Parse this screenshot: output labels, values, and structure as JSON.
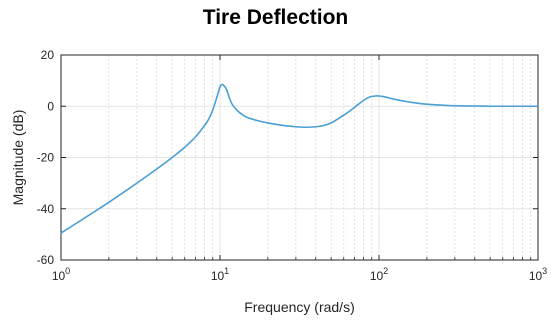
{
  "chart_data": {
    "type": "line",
    "title": "Tire Deflection",
    "xlabel": "Frequency  (rad/s)",
    "ylabel": "Magnitude (dB)",
    "x_scale": "log",
    "xlim": [
      1,
      1000
    ],
    "ylim": [
      -60,
      20
    ],
    "grid": true,
    "x_ticks": [
      {
        "value": 1,
        "base": "10",
        "exp": "0"
      },
      {
        "value": 10,
        "base": "10",
        "exp": "1"
      },
      {
        "value": 100,
        "base": "10",
        "exp": "2"
      },
      {
        "value": 1000,
        "base": "10",
        "exp": "3"
      }
    ],
    "y_ticks": [
      {
        "value": 20,
        "label": "20"
      },
      {
        "value": 0,
        "label": "0"
      },
      {
        "value": -20,
        "label": "-20"
      },
      {
        "value": -40,
        "label": "-40"
      },
      {
        "value": -60,
        "label": "-60"
      }
    ],
    "series": [
      {
        "color": "#4a9fd4",
        "x": [
          1,
          1.5,
          2,
          3,
          4,
          5,
          6,
          7,
          8,
          8.5,
          9,
          9.5,
          10,
          10.3,
          10.6,
          11,
          11.5,
          12,
          13,
          14,
          15,
          17,
          20,
          25,
          30,
          35,
          40,
          45,
          50,
          55,
          60,
          65,
          70,
          75,
          80,
          85,
          90,
          95,
          100,
          110,
          120,
          130,
          150,
          170,
          200,
          250,
          300,
          400,
          500,
          700,
          1000
        ],
        "y": [
          -49.5,
          -42.5,
          -37.5,
          -30,
          -24.5,
          -20,
          -16,
          -12,
          -7.5,
          -5,
          -1.5,
          3,
          7.5,
          8.5,
          8,
          6.5,
          3,
          0.5,
          -2,
          -3.5,
          -4.5,
          -5.5,
          -6.5,
          -7.5,
          -8,
          -8.2,
          -8,
          -7.5,
          -6.5,
          -5,
          -3.5,
          -2,
          -0.5,
          1,
          2.3,
          3.3,
          3.8,
          4,
          4,
          3.6,
          3,
          2.5,
          1.8,
          1.3,
          0.8,
          0.4,
          0.2,
          0.1,
          0,
          0,
          0
        ]
      }
    ]
  }
}
